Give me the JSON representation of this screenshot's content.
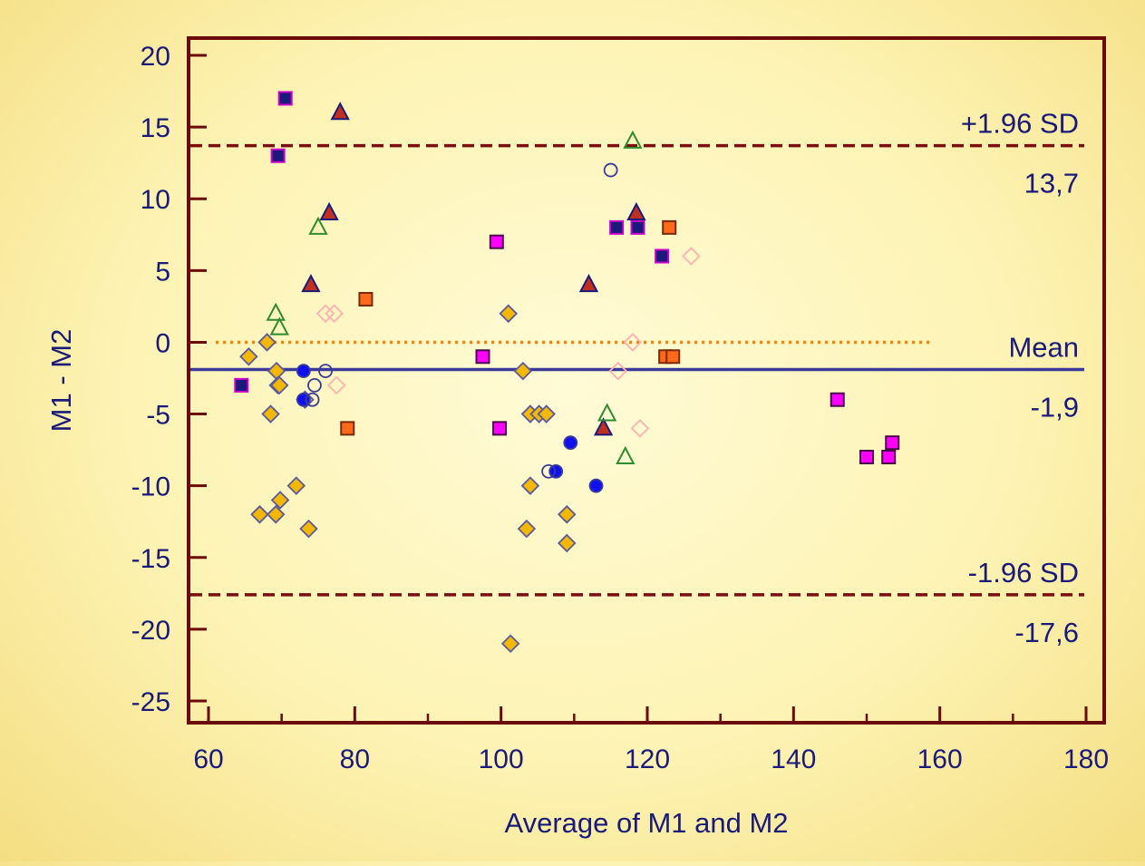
{
  "chart_data": {
    "type": "scatter",
    "title": "",
    "xlabel": "Average of M1 and M2",
    "ylabel": "M1 - M2",
    "xlim": [
      60,
      180
    ],
    "ylim": [
      -25,
      20
    ],
    "x_ticks": [
      60,
      80,
      100,
      120,
      140,
      160,
      180
    ],
    "x_minor_ticks": [
      70,
      90,
      110,
      130,
      150,
      170
    ],
    "y_ticks": [
      20,
      15,
      10,
      5,
      0,
      -5,
      -10,
      -15,
      -20,
      -25
    ],
    "grid": false,
    "colors": {
      "frame": "#6b0a0a",
      "axis_text": "#1a1a7a",
      "mean_line": "#3a3a9a",
      "sd_line": "#7a0f0f",
      "zero_line": "#ff7f00"
    },
    "reference_lines": [
      {
        "name": "upper_sd",
        "label": "+1.96 SD",
        "value_label": "13,7",
        "y": 13.7,
        "style": "dashed",
        "color": "#7a0f0f"
      },
      {
        "name": "mean",
        "label": "Mean",
        "value_label": "-1,9",
        "y": -1.9,
        "style": "solid",
        "color": "#3a3a9a"
      },
      {
        "name": "lower_sd",
        "label": "-1.96 SD",
        "value_label": "-17,6",
        "y": -17.6,
        "style": "dashed",
        "color": "#7a0f0f"
      },
      {
        "name": "zero",
        "label": "",
        "value_label": "",
        "y": 0,
        "style": "dotted",
        "color": "#ff7f00",
        "x_range": [
          61,
          159
        ]
      }
    ],
    "series": [
      {
        "marker": "square",
        "fill": "#1a1a7a",
        "stroke": "#cc00cc",
        "points": [
          [
            70.5,
            17
          ],
          [
            69.5,
            13
          ],
          [
            115.8,
            8
          ],
          [
            118.7,
            8
          ],
          [
            122,
            6
          ],
          [
            64.5,
            -3
          ]
        ]
      },
      {
        "marker": "square",
        "fill": "#ff00ff",
        "stroke": "#4a0a4a",
        "points": [
          [
            99.4,
            7
          ],
          [
            97.5,
            -1
          ],
          [
            99.8,
            -6
          ],
          [
            146,
            -4
          ],
          [
            150,
            -8
          ],
          [
            153,
            -8
          ],
          [
            153.5,
            -7
          ]
        ]
      },
      {
        "marker": "square",
        "fill": "#ff6a1a",
        "stroke": "#7a2a0a",
        "points": [
          [
            81.5,
            3
          ],
          [
            79,
            -6
          ],
          [
            123,
            8
          ],
          [
            122.5,
            -1
          ],
          [
            123.5,
            -1
          ]
        ]
      },
      {
        "marker": "triangle",
        "fill": "#c03020",
        "stroke": "#1a1a7a",
        "points": [
          [
            78,
            16
          ],
          [
            76.5,
            9
          ],
          [
            74,
            4
          ],
          [
            112,
            4
          ],
          [
            118.5,
            9
          ],
          [
            114,
            -6
          ]
        ]
      },
      {
        "marker": "triangle",
        "fill": "none",
        "stroke": "#2e8b2e",
        "points": [
          [
            75,
            8
          ],
          [
            69.2,
            2
          ],
          [
            69.7,
            1
          ],
          [
            118,
            14
          ],
          [
            114.5,
            -5
          ],
          [
            117,
            -8
          ]
        ]
      },
      {
        "marker": "diamond",
        "fill": "#f5b800",
        "stroke": "#5a5aa0",
        "points": [
          [
            65.5,
            -1
          ],
          [
            68,
            0
          ],
          [
            69.3,
            -2
          ],
          [
            69.5,
            -3
          ],
          [
            69.7,
            -3
          ],
          [
            68.5,
            -5
          ],
          [
            67,
            -12
          ],
          [
            69.2,
            -12
          ],
          [
            69.8,
            -11
          ],
          [
            72,
            -10
          ],
          [
            73.2,
            -4
          ],
          [
            73.7,
            -13
          ],
          [
            101,
            2
          ],
          [
            103,
            -2
          ],
          [
            104,
            -5
          ],
          [
            105.2,
            -5
          ],
          [
            106.2,
            -5
          ],
          [
            104,
            -10
          ],
          [
            103.5,
            -13
          ],
          [
            109,
            -12
          ],
          [
            109,
            -14
          ],
          [
            101.3,
            -21
          ]
        ]
      },
      {
        "marker": "diamond",
        "fill": "none",
        "stroke": "#ffb0b0",
        "points": [
          [
            76,
            2
          ],
          [
            77.2,
            2
          ],
          [
            77.5,
            -3
          ],
          [
            118,
            0
          ],
          [
            116,
            -2
          ],
          [
            119,
            -6
          ],
          [
            126,
            6
          ]
        ]
      },
      {
        "marker": "circle",
        "fill": "#1010ee",
        "stroke": "#3a3a9a",
        "points": [
          [
            73,
            -2
          ],
          [
            73,
            -4
          ],
          [
            109.5,
            -7
          ],
          [
            107.5,
            -9
          ],
          [
            113,
            -10
          ]
        ]
      },
      {
        "marker": "circle",
        "fill": "none",
        "stroke": "#3a3a9a",
        "points": [
          [
            76,
            -2
          ],
          [
            74.5,
            -3
          ],
          [
            74.2,
            -4
          ],
          [
            106.5,
            -9
          ],
          [
            115,
            12
          ]
        ]
      }
    ]
  }
}
